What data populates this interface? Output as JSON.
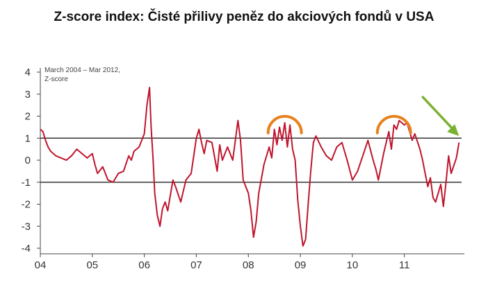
{
  "chart_data": {
    "type": "line",
    "title": "Z-score index: Čisté přilivy peněz do akciových fondů v USA",
    "note_lines": [
      "March 2004 – Mar 2012,",
      "Z-score"
    ],
    "xlabel": "",
    "ylabel": "",
    "xlim": [
      2004.0,
      2012.1
    ],
    "ylim": [
      -4,
      4
    ],
    "y_ticks": [
      {
        "value": 4,
        "label": "4"
      },
      {
        "value": 3,
        "label": "3"
      },
      {
        "value": 2,
        "label": "2"
      },
      {
        "value": 1,
        "label": "1"
      },
      {
        "value": 0,
        "label": "0"
      },
      {
        "value": -1,
        "label": "-1"
      },
      {
        "value": -2,
        "label": "-2"
      },
      {
        "value": -3,
        "label": "-3"
      },
      {
        "value": -4,
        "label": "-4"
      }
    ],
    "x_ticks": [
      {
        "value": 2004.0,
        "label": "04"
      },
      {
        "value": 2005.0,
        "label": "05"
      },
      {
        "value": 2006.0,
        "label": "06"
      },
      {
        "value": 2007.0,
        "label": "07"
      },
      {
        "value": 2008.0,
        "label": "08"
      },
      {
        "value": 2009.0,
        "label": "09"
      },
      {
        "value": 2010.0,
        "label": "10"
      },
      {
        "value": 2011.0,
        "label": "11"
      }
    ],
    "reference_lines": [
      1,
      -1
    ],
    "grid": false,
    "line_color": "#c0142c",
    "annotation_color_arc": "#e8821e",
    "annotation_color_arrow": "#7ab030",
    "annotations": [
      {
        "type": "arc",
        "x": 2008.7,
        "y": 1.55
      },
      {
        "type": "arc",
        "x": 2010.8,
        "y": 1.55
      },
      {
        "type": "arrow",
        "x": 2012.05,
        "y": 1.1
      }
    ],
    "series": [
      {
        "x": [
          2004.0,
          2004.05,
          2004.1,
          2004.15,
          2004.2,
          2004.3,
          2004.4,
          2004.5,
          2004.6,
          2004.7,
          2004.8,
          2004.9,
          2005.0,
          2005.05,
          2005.1,
          2005.2,
          2005.3,
          2005.4,
          2005.5,
          2005.6,
          2005.7,
          2005.75,
          2005.8,
          2005.9,
          2006.0,
          2006.05,
          2006.1,
          2006.13,
          2006.17,
          2006.2,
          2006.25,
          2006.3,
          2006.35,
          2006.4,
          2006.45,
          2006.5,
          2006.55,
          2006.6,
          2006.7,
          2006.8,
          2006.9,
          2007.0,
          2007.05,
          2007.1,
          2007.15,
          2007.2,
          2007.3,
          2007.4,
          2007.45,
          2007.5,
          2007.6,
          2007.7,
          2007.8,
          2007.85,
          2007.9,
          2008.0,
          2008.05,
          2008.1,
          2008.15,
          2008.2,
          2008.3,
          2008.4,
          2008.45,
          2008.5,
          2008.55,
          2008.6,
          2008.65,
          2008.7,
          2008.75,
          2008.8,
          2008.85,
          2008.9,
          2008.95,
          2009.0,
          2009.05,
          2009.1,
          2009.15,
          2009.2,
          2009.25,
          2009.3,
          2009.4,
          2009.5,
          2009.6,
          2009.7,
          2009.8,
          2009.9,
          2010.0,
          2010.1,
          2010.2,
          2010.3,
          2010.4,
          2010.45,
          2010.5,
          2010.6,
          2010.7,
          2010.75,
          2010.8,
          2010.85,
          2010.9,
          2011.0,
          2011.05,
          2011.1,
          2011.15,
          2011.2,
          2011.3,
          2011.35,
          2011.4,
          2011.45,
          2011.5,
          2011.55,
          2011.6,
          2011.7,
          2011.75,
          2011.8,
          2011.85,
          2011.9,
          2012.0,
          2012.05
        ],
        "y": [
          1.4,
          1.3,
          0.9,
          0.6,
          0.4,
          0.2,
          0.1,
          0.0,
          0.2,
          0.5,
          0.3,
          0.1,
          0.3,
          -0.2,
          -0.6,
          -0.3,
          -0.9,
          -1.0,
          -0.6,
          -0.5,
          0.2,
          0.0,
          0.4,
          0.6,
          1.2,
          2.5,
          3.3,
          1.5,
          0.0,
          -1.5,
          -2.5,
          -3.0,
          -2.2,
          -1.9,
          -2.3,
          -1.6,
          -0.9,
          -1.2,
          -1.9,
          -0.9,
          -0.6,
          1.0,
          1.4,
          0.8,
          0.3,
          0.9,
          0.8,
          -0.5,
          0.7,
          0.0,
          0.6,
          0.0,
          1.8,
          0.9,
          -0.9,
          -1.5,
          -2.3,
          -3.5,
          -2.8,
          -1.5,
          -0.2,
          0.6,
          0.1,
          1.4,
          0.7,
          1.5,
          0.9,
          1.7,
          0.6,
          1.6,
          0.5,
          0.0,
          -1.8,
          -3.0,
          -3.9,
          -3.6,
          -2.0,
          -0.5,
          0.8,
          1.1,
          0.6,
          0.2,
          0.0,
          0.6,
          0.8,
          0.0,
          -0.9,
          -0.5,
          0.2,
          0.9,
          0.0,
          -0.4,
          -0.9,
          0.3,
          1.3,
          0.5,
          1.6,
          1.4,
          1.8,
          1.6,
          1.7,
          1.3,
          0.9,
          1.2,
          0.5,
          0.0,
          -0.6,
          -1.2,
          -0.8,
          -1.7,
          -1.9,
          -1.1,
          -2.1,
          -1.0,
          0.2,
          -0.6,
          0.1,
          0.8
        ]
      }
    ]
  }
}
